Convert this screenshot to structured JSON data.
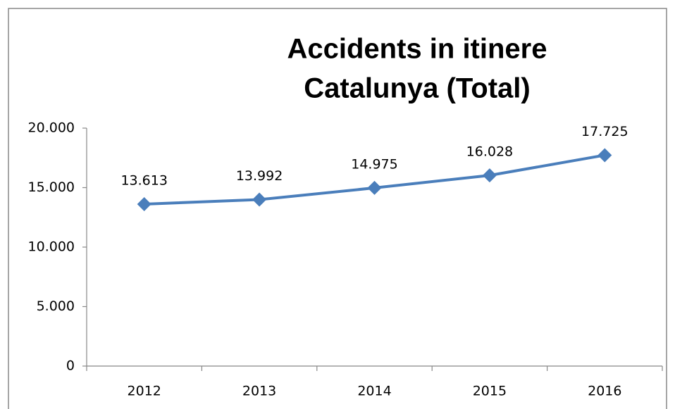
{
  "chart_data": {
    "type": "line",
    "title": [
      "Accidents in itinere",
      "Catalunya (Total)"
    ],
    "categories": [
      "2012",
      "2013",
      "2014",
      "2015",
      "2016"
    ],
    "series": [
      {
        "name": "Total",
        "color": "#4a7ebb",
        "values": [
          13613,
          13992,
          14975,
          16028,
          17725
        ],
        "value_labels": [
          "13.613",
          "13.992",
          "14.975",
          "16.028",
          "17.725"
        ]
      }
    ],
    "ylim": [
      0,
      20000
    ],
    "yticks": [
      0,
      {
        "value": 5000,
        "label": "5.000"
      },
      {
        "value": 10000,
        "label": "10.000"
      },
      {
        "value": 15000,
        "label": "15.000"
      },
      {
        "value": 20000,
        "label": "20.000"
      }
    ],
    "grid": false
  }
}
